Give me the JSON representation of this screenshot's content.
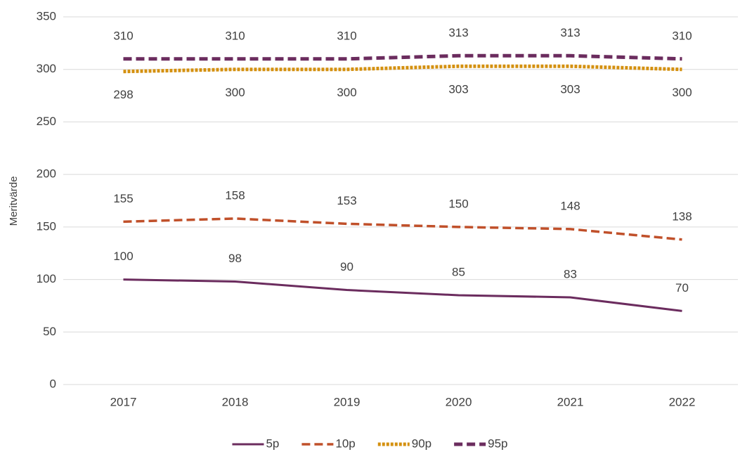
{
  "chart_data": {
    "type": "line",
    "y_label": "Meritvärde",
    "categories": [
      "2017",
      "2018",
      "2019",
      "2020",
      "2021",
      "2022"
    ],
    "series": [
      {
        "name": "5p",
        "color": "#6b2c5e",
        "line_style": "solid",
        "values": [
          100,
          98,
          90,
          85,
          83,
          70
        ]
      },
      {
        "name": "10p",
        "color": "#c0502a",
        "line_style": "dashed",
        "values": [
          155,
          158,
          153,
          150,
          148,
          138
        ]
      },
      {
        "name": "90p",
        "color": "#d4900f",
        "line_style": "dotted",
        "values": [
          298,
          300,
          300,
          303,
          303,
          300
        ]
      },
      {
        "name": "95p",
        "color": "#6b2c5e",
        "line_style": "dashed",
        "values": [
          310,
          310,
          310,
          313,
          313,
          310
        ]
      }
    ],
    "ylim": [
      0,
      350
    ],
    "yticks": [
      0,
      50,
      100,
      150,
      200,
      250,
      300,
      350
    ],
    "grid": true,
    "legend": "bottom"
  }
}
